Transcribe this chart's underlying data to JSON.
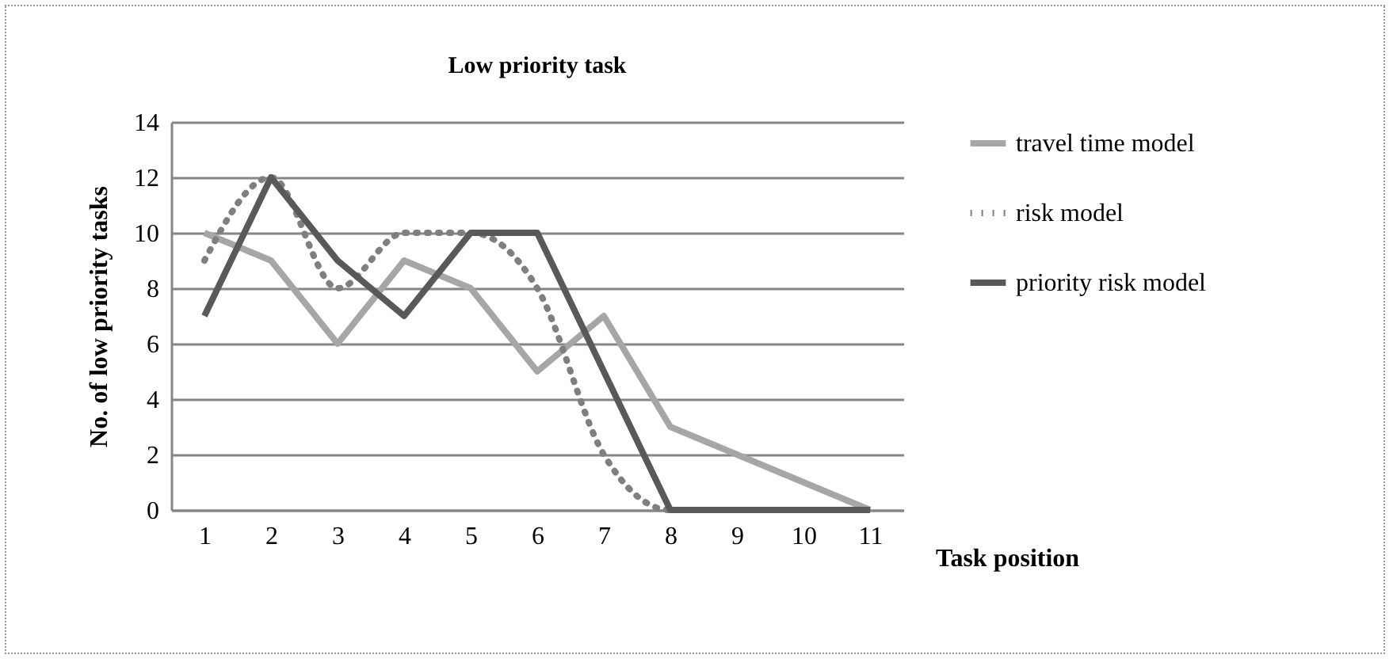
{
  "chart_data": {
    "type": "line",
    "title": "Low priority task",
    "xlabel": "Task position",
    "ylabel": "No. of low priority tasks",
    "categories": [
      "1",
      "2",
      "3",
      "4",
      "5",
      "6",
      "7",
      "8",
      "9",
      "10",
      "11"
    ],
    "series": [
      {
        "name": "travel time model",
        "color": "#a6a6a6",
        "values": [
          10,
          9,
          6,
          9,
          8,
          5,
          7,
          3,
          2,
          1,
          0
        ]
      },
      {
        "name": "risk model",
        "color": "#7f7f7f",
        "line_style": "dotted",
        "values": [
          9,
          12,
          8,
          10,
          10,
          8,
          2,
          0,
          0,
          0,
          0
        ]
      },
      {
        "name": "priority risk model",
        "color": "#595959",
        "values": [
          7,
          12,
          9,
          7,
          10,
          10,
          5,
          0,
          0,
          0,
          0
        ]
      }
    ],
    "ylim": [
      0,
      14
    ],
    "yticks": [
      0,
      2,
      4,
      6,
      8,
      10,
      12,
      14
    ],
    "grid": "y",
    "legend": "right",
    "marker": "none",
    "line_style": "solid"
  }
}
